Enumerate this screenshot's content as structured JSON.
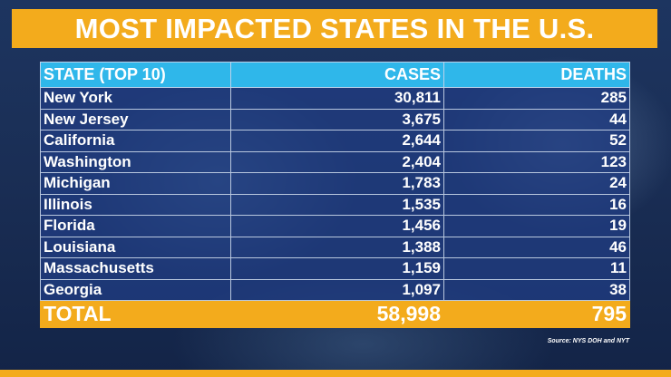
{
  "banner": {
    "title": "MOST IMPACTED STATES IN THE U.S."
  },
  "table": {
    "headers": [
      "STATE (TOP 10)",
      "CASES",
      "DEATHS"
    ],
    "rows": [
      [
        "New York",
        "30,811",
        "285"
      ],
      [
        "New Jersey",
        "3,675",
        "44"
      ],
      [
        "California",
        "2,644",
        "52"
      ],
      [
        "Washington",
        "2,404",
        "123"
      ],
      [
        "Michigan",
        "1,783",
        "24"
      ],
      [
        "Illinois",
        "1,535",
        "16"
      ],
      [
        "Florida",
        "1,456",
        "19"
      ],
      [
        "Louisiana",
        "1,388",
        "46"
      ],
      [
        "Massachusetts",
        "1,159",
        "11"
      ],
      [
        "Georgia",
        "1,097",
        "38"
      ]
    ],
    "total": [
      "TOTAL",
      "58,998",
      "795"
    ]
  },
  "source": "Source: NYS DOH and NYT",
  "colors": {
    "accent": "#f3ab1c",
    "header": "#2fb7ea",
    "table_bg": "#203c82"
  }
}
